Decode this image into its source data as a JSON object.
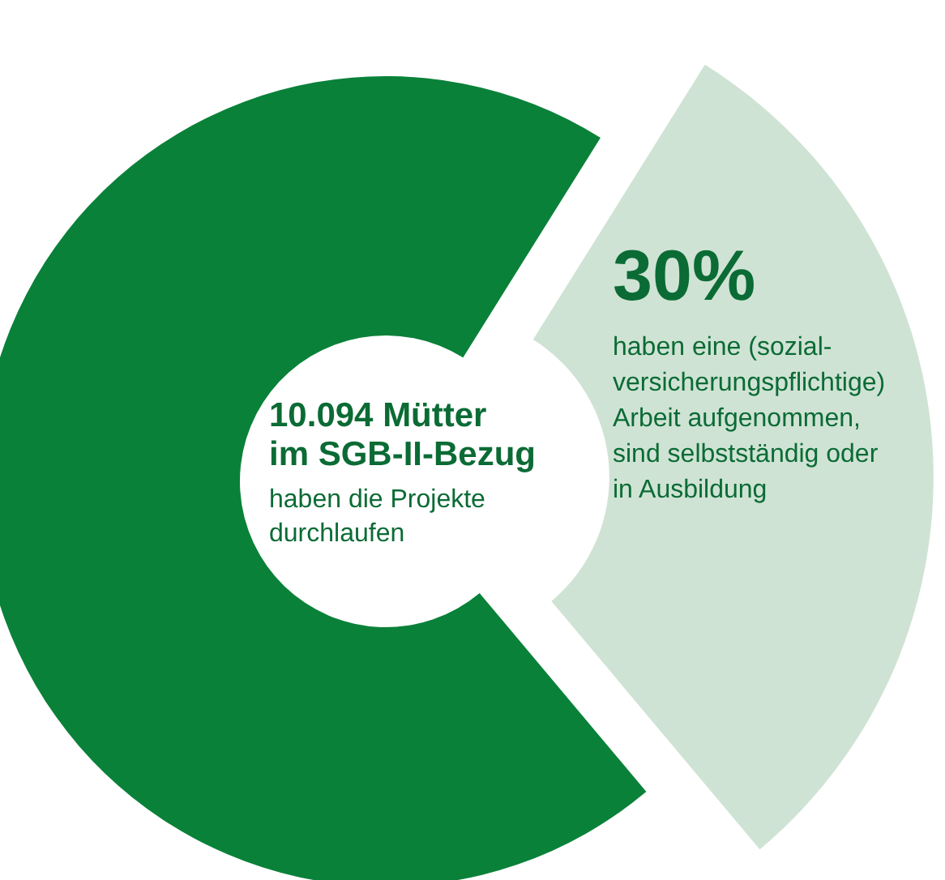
{
  "chart_data": {
    "type": "donut",
    "title": "10.094 Mütter\nim SGB-II-Bezug",
    "subtitle": "haben die Projekte\ndurchlaufen",
    "categories": [
      null,
      null
    ],
    "values": [
      30,
      70
    ],
    "colors": [
      "#cfe3d4",
      "#0a8139"
    ],
    "value_labels": [
      "30%",
      null
    ],
    "annotations": [
      "haben eine (sozial-\nversicherungspflichtige)\nArbeit aufgenommen,\nsind selbstständig oder\nin Ausbildung"
    ]
  }
}
